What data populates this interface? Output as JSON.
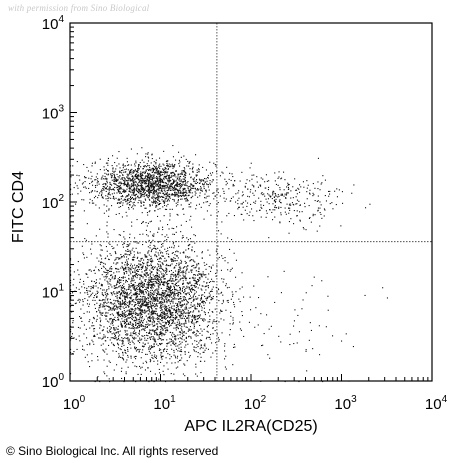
{
  "watermark": "with permission from Sino Biological",
  "copyright": "© Sino Biological Inc. All rights reserved",
  "chart_data": {
    "type": "scatter",
    "xlabel": "APC IL2RA(CD25)",
    "ylabel": "FITC CD4",
    "xscale": "log",
    "yscale": "log",
    "xlim": [
      1,
      10000
    ],
    "ylim": [
      1,
      10000
    ],
    "x_ticks": [
      {
        "base": "10",
        "exp": "0"
      },
      {
        "base": "10",
        "exp": "1"
      },
      {
        "base": "10",
        "exp": "2"
      },
      {
        "base": "10",
        "exp": "3"
      },
      {
        "base": "10",
        "exp": "4"
      }
    ],
    "y_ticks": [
      {
        "base": "10",
        "exp": "0"
      },
      {
        "base": "10",
        "exp": "1"
      },
      {
        "base": "10",
        "exp": "2"
      },
      {
        "base": "10",
        "exp": "3"
      },
      {
        "base": "10",
        "exp": "4"
      }
    ],
    "gates": {
      "x": 42,
      "y": 36
    },
    "point_color": "#111111",
    "populations": [
      {
        "region": "CD4+ CD25-",
        "center": [
          8,
          160
        ],
        "spread": [
          2.2,
          1.35
        ],
        "count": 1700
      },
      {
        "region": "CD4- CD25-",
        "center": [
          8,
          8
        ],
        "spread": [
          2.4,
          2.2
        ],
        "count": 3400
      },
      {
        "region": "CD4+ CD25+",
        "center": [
          200,
          110
        ],
        "spread": [
          2.2,
          1.4
        ],
        "count": 320
      },
      {
        "region": "CD4- CD25+",
        "center": [
          300,
          4
        ],
        "spread": [
          2.5,
          2.3
        ],
        "count": 60
      }
    ]
  }
}
